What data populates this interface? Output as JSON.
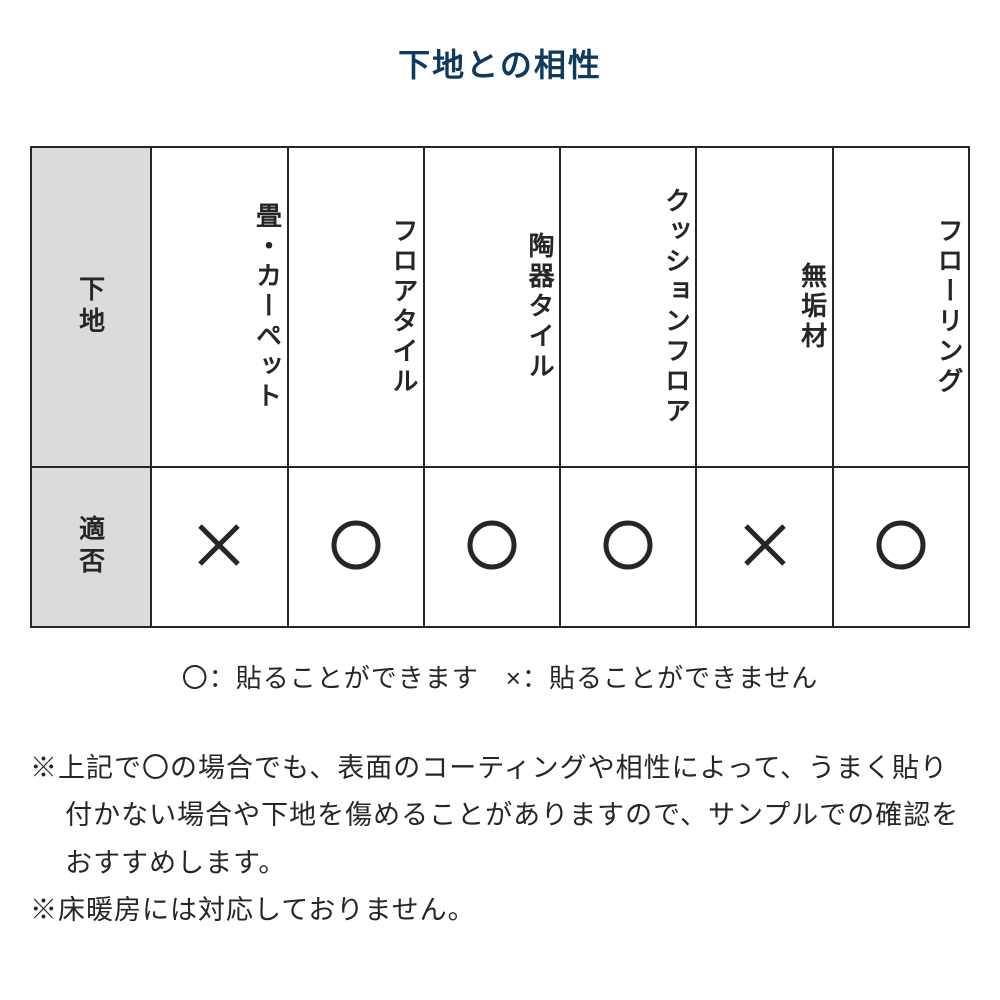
{
  "title": "下地との相性",
  "colors": {
    "title_color": "#0e3a5e",
    "text_color": "#262626",
    "header_bg": "#dadbdd",
    "border_color": "#262626",
    "background": "#ffffff"
  },
  "typography": {
    "title_fontsize": 32,
    "cell_fontsize": 26,
    "legend_fontsize": 26,
    "notes_fontsize": 27
  },
  "table": {
    "type": "table",
    "row_header_label": "下地",
    "row_label": "適否",
    "columns": [
      "畳・カーペット",
      "フロアタイル",
      "陶器タイル",
      "クッションフロア",
      "無垢材",
      "フローリング"
    ],
    "values": [
      "×",
      "〇",
      "〇",
      "〇",
      "×",
      "〇"
    ],
    "header_row_height": 320,
    "data_row_height": 160,
    "first_col_width": 120
  },
  "legend": "〇：貼ることができます　×：貼ることができません",
  "notes": [
    "※上記で〇の場合でも、表面のコーティングや相性によって、うまく貼り付かない場合や下地を傷めることがありますので、サンプルでの確認をおすすめします。",
    "※床暖房には対応しておりません。"
  ],
  "symbol_style": {
    "circle_stroke_width": 5,
    "cross_stroke_width": 5,
    "circle_size": 54,
    "cross_size": 50
  }
}
